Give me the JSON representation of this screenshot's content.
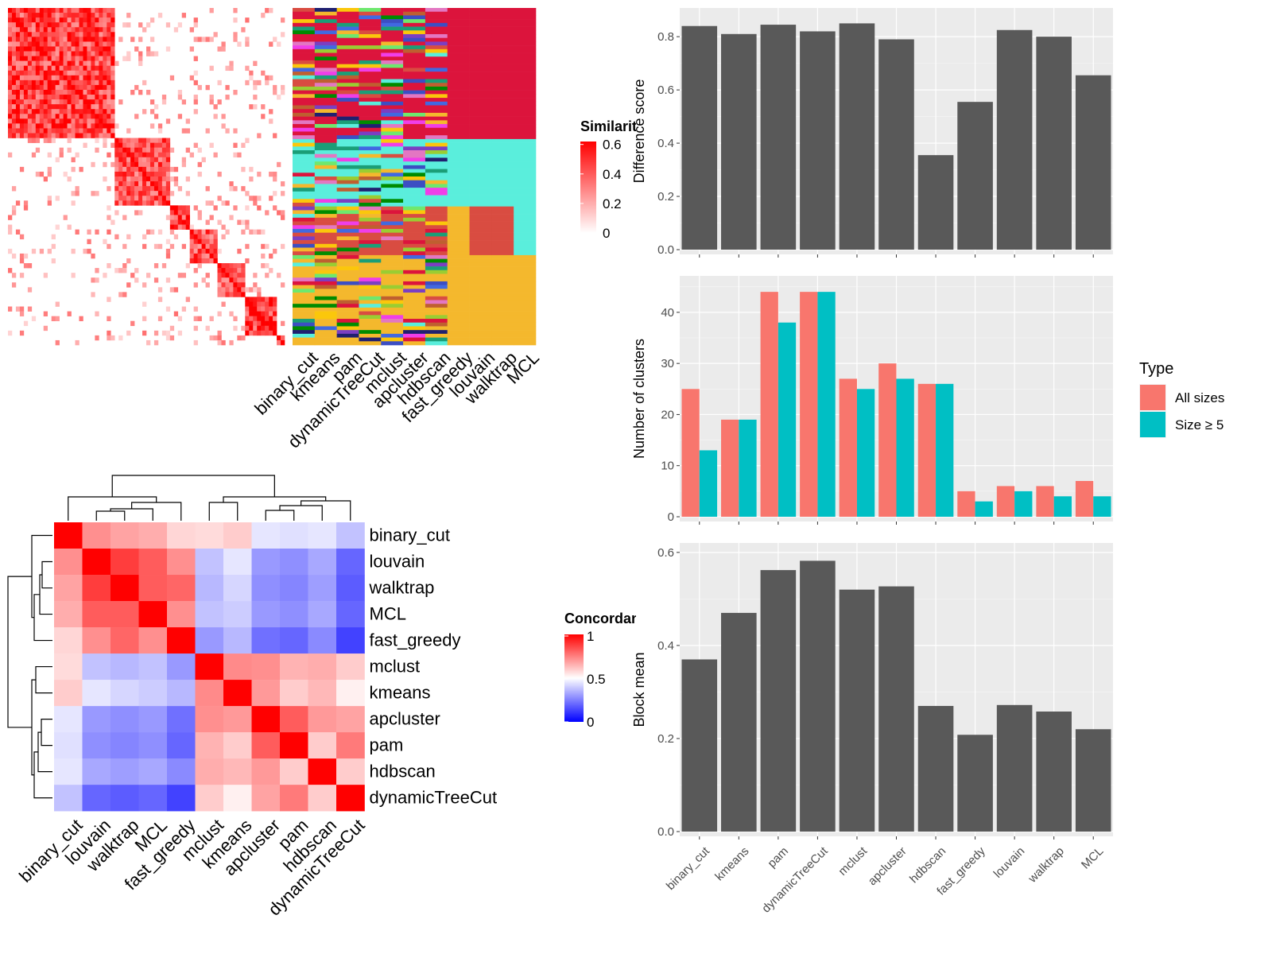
{
  "chart_data": [
    {
      "type": "heatmap",
      "name": "similarity-matrix",
      "legend_title": "Similarity",
      "legend_ticks": [
        "0",
        "0.2",
        "0.4",
        "0.6"
      ],
      "colors": {
        "low": "#ffffff",
        "high": "#ff0000"
      },
      "blocks": [
        {
          "start": 0.0,
          "end": 0.38,
          "mean": 0.55
        },
        {
          "start": 0.38,
          "end": 0.59,
          "mean": 0.5
        },
        {
          "start": 0.59,
          "end": 0.66,
          "mean": 0.55
        },
        {
          "start": 0.66,
          "end": 0.76,
          "mean": 0.5
        },
        {
          "start": 0.76,
          "end": 0.86,
          "mean": 0.45
        },
        {
          "start": 0.86,
          "end": 0.97,
          "mean": 0.6
        },
        {
          "start": 0.97,
          "end": 1.0,
          "mean": 0.6
        }
      ]
    },
    {
      "type": "heatmap",
      "name": "cluster-membership",
      "methods": [
        "binary_cut",
        "kmeans",
        "pam",
        "dynamicTreeCut",
        "mclust",
        "apcluster",
        "hdbscan",
        "fast_greedy",
        "louvain",
        "walktrap",
        "MCL"
      ],
      "palette": [
        "#dc143c",
        "#5aeedc",
        "#d94c41",
        "#008b00",
        "#f4b82d",
        "#fbc70b",
        "#7b3fc2",
        "#f03ee8",
        "#3c4ec3",
        "#6ee86e",
        "#bf5f30",
        "#1b9e77",
        "#202070",
        "#9acd32",
        "#e377c2",
        "#4169e1"
      ]
    },
    {
      "type": "heatmap",
      "name": "concordance-matrix",
      "legend_title": "Concordance",
      "legend_ticks": [
        "0",
        "0.5",
        "1"
      ],
      "colors": {
        "low": "#0000ff",
        "mid": "#ffffff",
        "high": "#ff0000"
      },
      "rows": [
        "binary_cut",
        "louvain",
        "walktrap",
        "MCL",
        "fast_greedy",
        "mclust",
        "kmeans",
        "apcluster",
        "pam",
        "hdbscan",
        "dynamicTreeCut"
      ],
      "cols": [
        "binary_cut",
        "louvain",
        "walktrap",
        "MCL",
        "fast_greedy",
        "mclust",
        "kmeans",
        "apcluster",
        "pam",
        "hdbscan",
        "dynamicTreeCut"
      ],
      "values": [
        [
          1.0,
          0.72,
          0.68,
          0.66,
          0.58,
          0.57,
          0.6,
          0.45,
          0.44,
          0.45,
          0.38
        ],
        [
          0.72,
          1.0,
          0.88,
          0.82,
          0.72,
          0.38,
          0.45,
          0.3,
          0.28,
          0.33,
          0.2
        ],
        [
          0.68,
          0.88,
          1.0,
          0.82,
          0.8,
          0.36,
          0.42,
          0.28,
          0.26,
          0.31,
          0.18
        ],
        [
          0.66,
          0.82,
          0.82,
          1.0,
          0.72,
          0.38,
          0.4,
          0.3,
          0.28,
          0.33,
          0.2
        ],
        [
          0.58,
          0.72,
          0.8,
          0.72,
          1.0,
          0.3,
          0.36,
          0.22,
          0.2,
          0.27,
          0.13
        ],
        [
          0.57,
          0.38,
          0.36,
          0.38,
          0.3,
          1.0,
          0.73,
          0.72,
          0.65,
          0.66,
          0.6
        ],
        [
          0.6,
          0.45,
          0.42,
          0.4,
          0.36,
          0.73,
          1.0,
          0.7,
          0.6,
          0.64,
          0.53
        ],
        [
          0.45,
          0.3,
          0.28,
          0.3,
          0.22,
          0.72,
          0.7,
          1.0,
          0.82,
          0.7,
          0.68
        ],
        [
          0.44,
          0.28,
          0.26,
          0.28,
          0.2,
          0.65,
          0.6,
          0.82,
          1.0,
          0.6,
          0.76
        ],
        [
          0.45,
          0.33,
          0.31,
          0.33,
          0.27,
          0.66,
          0.64,
          0.7,
          0.6,
          1.0,
          0.6
        ],
        [
          0.38,
          0.2,
          0.18,
          0.2,
          0.13,
          0.6,
          0.53,
          0.68,
          0.76,
          0.6,
          1.0
        ]
      ]
    },
    {
      "type": "bar",
      "name": "difference-score",
      "categories": [
        "binary_cut",
        "kmeans",
        "pam",
        "dynamicTreeCut",
        "mclust",
        "apcluster",
        "hdbscan",
        "fast_greedy",
        "louvain",
        "walktrap",
        "MCL"
      ],
      "values": [
        0.84,
        0.81,
        0.845,
        0.82,
        0.85,
        0.79,
        0.355,
        0.555,
        0.825,
        0.8,
        0.655
      ],
      "ylabel": "Difference score",
      "ylim": [
        0,
        0.89
      ],
      "yticks": [
        "0.0",
        "0.2",
        "0.4",
        "0.6",
        "0.8"
      ],
      "bar_color": "#595959"
    },
    {
      "type": "bar",
      "name": "number-of-clusters",
      "categories": [
        "binary_cut",
        "kmeans",
        "pam",
        "dynamicTreeCut",
        "mclust",
        "apcluster",
        "hdbscan",
        "fast_greedy",
        "louvain",
        "walktrap",
        "MCL"
      ],
      "series": [
        {
          "name": "All sizes",
          "color": "#f8766d",
          "values": [
            25,
            19,
            44,
            44,
            27,
            30,
            26,
            5,
            6,
            6,
            7
          ]
        },
        {
          "name": "Size ≥ 5",
          "color": "#00bfc4",
          "values": [
            13,
            19,
            38,
            44,
            25,
            27,
            26,
            3,
            5,
            4,
            4
          ]
        }
      ],
      "ylabel": "Number of clusters",
      "ylim": [
        0,
        46.2
      ],
      "yticks": [
        "0",
        "10",
        "20",
        "30",
        "40"
      ],
      "legend_title": "Type",
      "legend_position": "right"
    },
    {
      "type": "bar",
      "name": "block-mean",
      "categories": [
        "binary_cut",
        "kmeans",
        "pam",
        "dynamicTreeCut",
        "mclust",
        "apcluster",
        "hdbscan",
        "fast_greedy",
        "louvain",
        "walktrap",
        "MCL"
      ],
      "values": [
        0.37,
        0.47,
        0.562,
        0.582,
        0.52,
        0.527,
        0.27,
        0.208,
        0.272,
        0.258,
        0.22
      ],
      "ylabel": "Block mean",
      "ylim": [
        0,
        0.61
      ],
      "yticks": [
        "0.0",
        "0.2",
        "0.4",
        "0.6"
      ],
      "bar_color": "#595959"
    }
  ]
}
